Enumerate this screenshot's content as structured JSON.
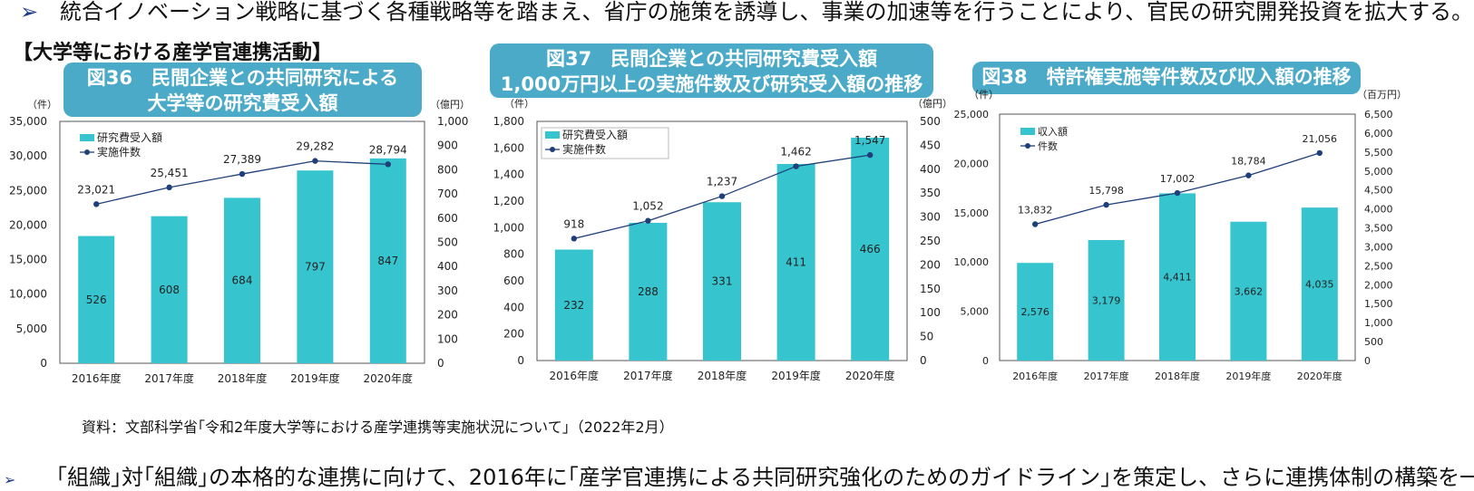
{
  "header": {
    "arrow": "➢",
    "text": "統合イノベーション戦略に基づく各種戦略等を踏まえ、省庁の施策を誘導し、事業の加速等を行うことにより、官民の研究開発投資を拡大する。"
  },
  "section_title": "【大学等における産学官連携活動】",
  "source": "資料：文部科学省｢令和2年度大学等における産学連携等実施状況について｣（2022年2月）",
  "footer": {
    "arrow": "➢",
    "text": "｢組織｣対｢組織｣の本格的な連携に向けて、2016年に｢産学官連携による共同研究強化のためのガイドライン｣を策定し、さらに連携体制の構築を一層加"
  },
  "colors": {
    "bar": "#36c4cf",
    "line": "#1f3f7a",
    "title_bg": "#4aaac8"
  },
  "chart_data": [
    {
      "type": "bar",
      "title": "図36　民間企業との共同研究による\n大学等の研究費受入額",
      "categories": [
        "2016年度",
        "2017年度",
        "2018年度",
        "2019年度",
        "2020年度"
      ],
      "left_unit": "（件）",
      "right_unit": "（億円）",
      "left_ylim": [
        0,
        35000
      ],
      "left_ticks": [
        0,
        5000,
        10000,
        15000,
        20000,
        25000,
        30000,
        35000
      ],
      "right_ylim": [
        0,
        1000
      ],
      "right_ticks": [
        0,
        100,
        200,
        300,
        400,
        500,
        600,
        700,
        800,
        900,
        1000
      ],
      "series": [
        {
          "name": "研究費受入額",
          "kind": "bar",
          "axis": "right",
          "values": [
            526,
            608,
            684,
            797,
            847
          ]
        },
        {
          "name": "実施件数",
          "kind": "line",
          "axis": "left",
          "values": [
            23021,
            25451,
            27389,
            29282,
            28794
          ]
        }
      ]
    },
    {
      "type": "bar",
      "title": "図37　民間企業との共同研究費受入額\n1,000万円以上の実施件数及び研究受入額の推移",
      "categories": [
        "2016年度",
        "2017年度",
        "2018年度",
        "2019年度",
        "2020年度"
      ],
      "left_unit": "（件）",
      "right_unit": "（億円）",
      "left_ylim": [
        0,
        1800
      ],
      "left_ticks": [
        0,
        200,
        400,
        600,
        800,
        1000,
        1200,
        1400,
        1600,
        1800
      ],
      "right_ylim": [
        0,
        500
      ],
      "right_ticks": [
        0,
        50,
        100,
        150,
        200,
        250,
        300,
        350,
        400,
        450,
        500
      ],
      "series": [
        {
          "name": "研究費受入額",
          "kind": "bar",
          "axis": "right",
          "values": [
            232,
            288,
            331,
            411,
            466
          ]
        },
        {
          "name": "実施件数",
          "kind": "line",
          "axis": "left",
          "values": [
            918,
            1052,
            1237,
            1462,
            1547
          ]
        }
      ]
    },
    {
      "type": "bar",
      "title": "図38　特許権実施等件数及び収入額の推移",
      "categories": [
        "2016年度",
        "2017年度",
        "2018年度",
        "2019年度",
        "2020年度"
      ],
      "left_unit": "（件）",
      "right_unit": "（百万円）",
      "left_ylim": [
        0,
        25000
      ],
      "left_ticks": [
        0,
        5000,
        10000,
        15000,
        20000,
        25000
      ],
      "right_ylim": [
        0,
        6500
      ],
      "right_ticks": [
        0,
        500,
        1000,
        1500,
        2000,
        2500,
        3000,
        3500,
        4000,
        4500,
        5000,
        5500,
        6000,
        6500
      ],
      "series": [
        {
          "name": "収入額",
          "kind": "bar",
          "axis": "right",
          "values": [
            2576,
            3179,
            4411,
            3662,
            4035
          ]
        },
        {
          "name": "件数",
          "kind": "line",
          "axis": "left",
          "values": [
            13832,
            15798,
            17002,
            18784,
            21056
          ]
        }
      ]
    }
  ]
}
